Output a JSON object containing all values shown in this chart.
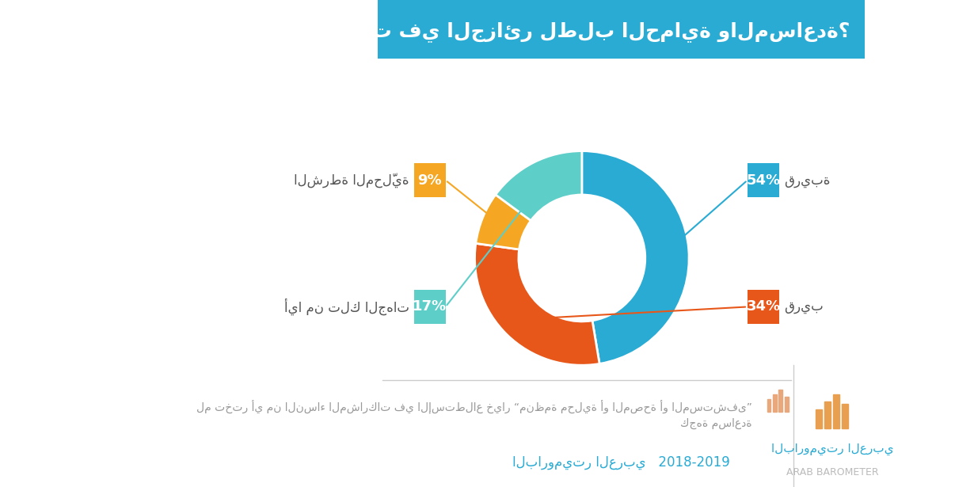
{
  "title": "إلى من تلجأ النساء المعنّفات في الجزائر لطلب الحماية والمساعدة؟",
  "slices": [
    54,
    34,
    9,
    17
  ],
  "colors": [
    "#29ABD4",
    "#E8571A",
    "#F5A623",
    "#5ECEC8"
  ],
  "labels_ar": [
    "قريبة",
    "قريب",
    "الشرطة المحلّية",
    "أيا من تلك الجهات"
  ],
  "pct_labels": [
    "54%",
    "34%",
    "9%",
    "17%"
  ],
  "start_angle": 90,
  "note_line1": "لم تختر أي من النساء المشاركات في الإستطلاع خيار “منظمة محلية أو المصحة أو المستشفى”",
  "note_line2": "كجهة مساعدة",
  "source": "الباروميتر العربي   2018-2019",
  "brand_ar": "الباروميتر العربي",
  "brand_en": "ARAB BAROMETER",
  "bg_color": "#FFFFFF",
  "title_bg": "#29ABD4",
  "title_color": "#FFFFFF",
  "note_color": "#AAAAAA",
  "source_color": "#29ABD4",
  "brand_color_ar": "#29ABD4",
  "brand_color_en": "#E0E0E0"
}
